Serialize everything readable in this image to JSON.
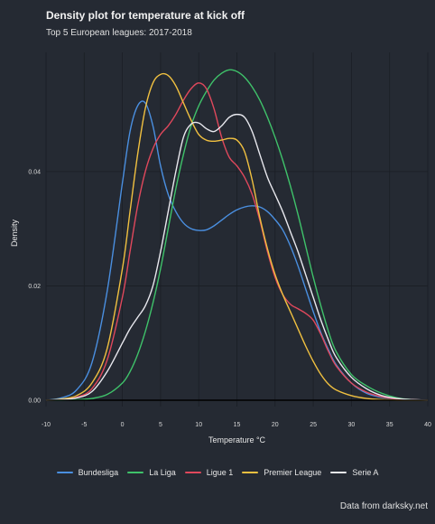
{
  "chart_data": {
    "type": "line",
    "title": "Density plot for temperature at kick off",
    "subtitle": "Top 5 European leagues: 2017-2018",
    "caption": "Data from darksky.net",
    "xlabel": "Temperature °C",
    "ylabel": "Density",
    "xlim": [
      -10,
      40
    ],
    "ylim": [
      0,
      0.058
    ],
    "x_ticks": [
      -10,
      -5,
      0,
      5,
      10,
      15,
      20,
      25,
      30,
      35,
      40
    ],
    "x_tick_labels": [
      "-10",
      "-5",
      "0",
      "5",
      "10",
      "15",
      "20",
      "25",
      "30",
      "35",
      "40"
    ],
    "y_ticks": [
      0,
      0.02,
      0.04
    ],
    "y_tick_labels": [
      "0.00",
      "0.02",
      "0.04"
    ],
    "grid": true,
    "legend_position": "bottom",
    "x": [
      -10,
      -8,
      -6,
      -4,
      -2,
      0,
      1,
      2,
      3,
      4,
      5,
      6,
      7,
      8,
      9,
      10,
      11,
      12,
      13,
      14,
      15,
      16,
      17,
      18,
      19,
      20,
      21,
      22,
      23,
      24,
      25,
      26,
      27,
      28,
      30,
      32,
      34,
      36,
      38,
      40
    ],
    "series": [
      {
        "name": "Bundesliga",
        "color": "#4a8fe0",
        "values": [
          0.0,
          0.0004,
          0.0018,
          0.0065,
          0.019,
          0.038,
          0.047,
          0.0515,
          0.052,
          0.048,
          0.041,
          0.036,
          0.033,
          0.031,
          0.03,
          0.0297,
          0.0298,
          0.0305,
          0.0315,
          0.0325,
          0.0333,
          0.0338,
          0.034,
          0.0338,
          0.033,
          0.0316,
          0.0298,
          0.027,
          0.0235,
          0.0195,
          0.0155,
          0.0118,
          0.0088,
          0.0062,
          0.003,
          0.0012,
          0.0005,
          0.0002,
          0.0001,
          0.0
        ]
      },
      {
        "name": "La Liga",
        "color": "#3fc26a",
        "values": [
          0.0,
          0.0,
          0.0001,
          0.0003,
          0.001,
          0.003,
          0.005,
          0.008,
          0.012,
          0.017,
          0.023,
          0.03,
          0.037,
          0.043,
          0.048,
          0.0515,
          0.054,
          0.056,
          0.0572,
          0.0578,
          0.0575,
          0.0565,
          0.0548,
          0.0525,
          0.0495,
          0.046,
          0.042,
          0.0375,
          0.0325,
          0.027,
          0.0215,
          0.0165,
          0.012,
          0.0085,
          0.0045,
          0.0025,
          0.0012,
          0.0004,
          0.0001,
          0.0
        ]
      },
      {
        "name": "Ligue 1",
        "color": "#e0485c",
        "values": [
          0.0,
          0.0001,
          0.0005,
          0.002,
          0.007,
          0.018,
          0.026,
          0.034,
          0.04,
          0.044,
          0.0465,
          0.048,
          0.05,
          0.0525,
          0.0545,
          0.0555,
          0.0545,
          0.051,
          0.046,
          0.0425,
          0.041,
          0.039,
          0.036,
          0.0315,
          0.026,
          0.0215,
          0.0185,
          0.0168,
          0.016,
          0.0152,
          0.014,
          0.0115,
          0.0085,
          0.006,
          0.003,
          0.0014,
          0.0006,
          0.0002,
          0.0001,
          0.0
        ]
      },
      {
        "name": "Premier League",
        "color": "#f0c040",
        "values": [
          0.0,
          0.0002,
          0.0008,
          0.003,
          0.009,
          0.023,
          0.033,
          0.043,
          0.051,
          0.0555,
          0.057,
          0.0568,
          0.055,
          0.052,
          0.049,
          0.0465,
          0.0455,
          0.0453,
          0.0455,
          0.0458,
          0.0455,
          0.0435,
          0.0385,
          0.032,
          0.0265,
          0.022,
          0.0185,
          0.0155,
          0.0125,
          0.0095,
          0.0068,
          0.0045,
          0.0028,
          0.0018,
          0.0008,
          0.0003,
          0.0001,
          0.0,
          0.0,
          0.0
        ]
      },
      {
        "name": "Serie A",
        "color": "#e8e8ee",
        "values": [
          0.0,
          0.0001,
          0.0004,
          0.0015,
          0.005,
          0.01,
          0.0125,
          0.0145,
          0.0165,
          0.02,
          0.026,
          0.033,
          0.04,
          0.046,
          0.0483,
          0.0485,
          0.0475,
          0.047,
          0.048,
          0.0495,
          0.05,
          0.0495,
          0.047,
          0.043,
          0.039,
          0.036,
          0.033,
          0.0295,
          0.026,
          0.022,
          0.018,
          0.014,
          0.0105,
          0.0075,
          0.004,
          0.002,
          0.0008,
          0.0003,
          0.0001,
          0.0
        ]
      }
    ]
  }
}
